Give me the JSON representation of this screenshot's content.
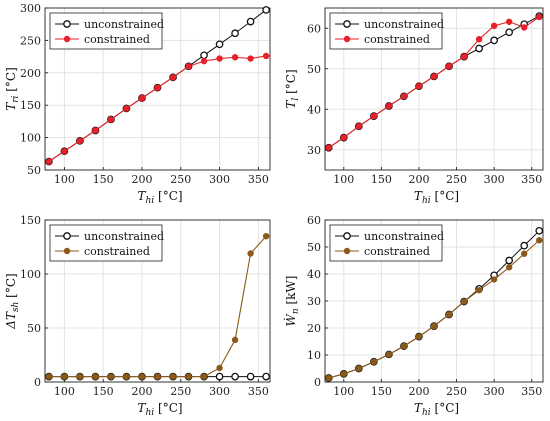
{
  "chart_data": [
    {
      "id": "p1",
      "type": "line",
      "xlabel": "T_hi [°C]",
      "ylabel": "T_ri [°C]",
      "xlim": [
        75,
        365
      ],
      "ylim": [
        50,
        300
      ],
      "xticks": [
        100,
        150,
        200,
        250,
        300,
        350
      ],
      "yticks": [
        50,
        100,
        150,
        200,
        250,
        300
      ],
      "grid": true,
      "legend": "top-left",
      "x": [
        80,
        100,
        120,
        140,
        160,
        180,
        200,
        220,
        240,
        260,
        280,
        300,
        320,
        340,
        360
      ],
      "series": [
        {
          "name": "unconstrained",
          "color": "#111111",
          "marker": "open-circle",
          "values": [
            63,
            79,
            95,
            111,
            128,
            145,
            161,
            177,
            193,
            210,
            227,
            244,
            261,
            279,
            297
          ]
        },
        {
          "name": "constrained",
          "color": "#e8202a",
          "marker": "filled-circle",
          "values": [
            63,
            79,
            95,
            111,
            128,
            145,
            161,
            177,
            193,
            210,
            218,
            222,
            224,
            222,
            226
          ]
        }
      ]
    },
    {
      "id": "p2",
      "type": "line",
      "xlabel": "T_hi [°C]",
      "ylabel": "T_l [°C]",
      "xlim": [
        75,
        365
      ],
      "ylim": [
        25,
        65
      ],
      "xticks": [
        100,
        150,
        200,
        250,
        300,
        350
      ],
      "yticks": [
        30,
        40,
        50,
        60
      ],
      "grid": true,
      "legend": "top-left",
      "x": [
        80,
        100,
        120,
        140,
        160,
        180,
        200,
        220,
        240,
        260,
        280,
        300,
        320,
        340,
        360
      ],
      "series": [
        {
          "name": "unconstrained",
          "color": "#111111",
          "marker": "open-circle",
          "values": [
            30.5,
            33.0,
            35.8,
            38.3,
            40.8,
            43.2,
            45.7,
            48.1,
            50.6,
            53.0,
            55.0,
            57.0,
            59.0,
            61.0,
            63.0
          ]
        },
        {
          "name": "constrained",
          "color": "#e8202a",
          "marker": "filled-circle",
          "values": [
            30.5,
            33.0,
            35.8,
            38.3,
            40.8,
            43.2,
            45.7,
            48.1,
            50.6,
            53.0,
            57.3,
            60.6,
            61.6,
            60.2,
            62.8
          ]
        }
      ]
    },
    {
      "id": "p3",
      "type": "line",
      "xlabel": "T_hi [°C]",
      "ylabel": "ΔT_sh [°C]",
      "xlim": [
        75,
        365
      ],
      "ylim": [
        0,
        150
      ],
      "xticks": [
        100,
        150,
        200,
        250,
        300,
        350
      ],
      "yticks": [
        0,
        50,
        100,
        150
      ],
      "grid": true,
      "legend": "top-left",
      "x": [
        80,
        100,
        120,
        140,
        160,
        180,
        200,
        220,
        240,
        260,
        280,
        300,
        320,
        340,
        360
      ],
      "series": [
        {
          "name": "unconstrained",
          "color": "#111111",
          "marker": "open-circle",
          "values": [
            5,
            5,
            5,
            5,
            5,
            5,
            5,
            5,
            5,
            5,
            5,
            5,
            5,
            5,
            5
          ]
        },
        {
          "name": "constrained",
          "color": "#8b5a1a",
          "marker": "filled-circle",
          "values": [
            5,
            5,
            5,
            5,
            5,
            5,
            5,
            5,
            5,
            5,
            5,
            13,
            39,
            119,
            135
          ]
        }
      ]
    },
    {
      "id": "p4",
      "type": "line",
      "xlabel": "T_hi [°C]",
      "ylabel": "Ẇ_n [kW]",
      "xlim": [
        75,
        365
      ],
      "ylim": [
        0,
        60
      ],
      "xticks": [
        100,
        150,
        200,
        250,
        300,
        350
      ],
      "yticks": [
        0,
        10,
        20,
        30,
        40,
        50,
        60
      ],
      "grid": true,
      "legend": "top-left",
      "x": [
        80,
        100,
        120,
        140,
        160,
        180,
        200,
        220,
        240,
        260,
        280,
        300,
        320,
        340,
        360
      ],
      "series": [
        {
          "name": "unconstrained",
          "color": "#111111",
          "marker": "open-circle",
          "values": [
            1.5,
            3.0,
            5.0,
            7.5,
            10.2,
            13.3,
            16.8,
            20.7,
            25.0,
            29.8,
            34.5,
            39.5,
            45.0,
            50.5,
            56.0
          ]
        },
        {
          "name": "constrained",
          "color": "#8b5a1a",
          "marker": "filled-circle",
          "values": [
            1.5,
            3.0,
            5.0,
            7.5,
            10.2,
            13.3,
            16.8,
            20.7,
            25.0,
            29.8,
            34.0,
            38.0,
            42.5,
            47.5,
            52.5
          ]
        }
      ]
    }
  ]
}
